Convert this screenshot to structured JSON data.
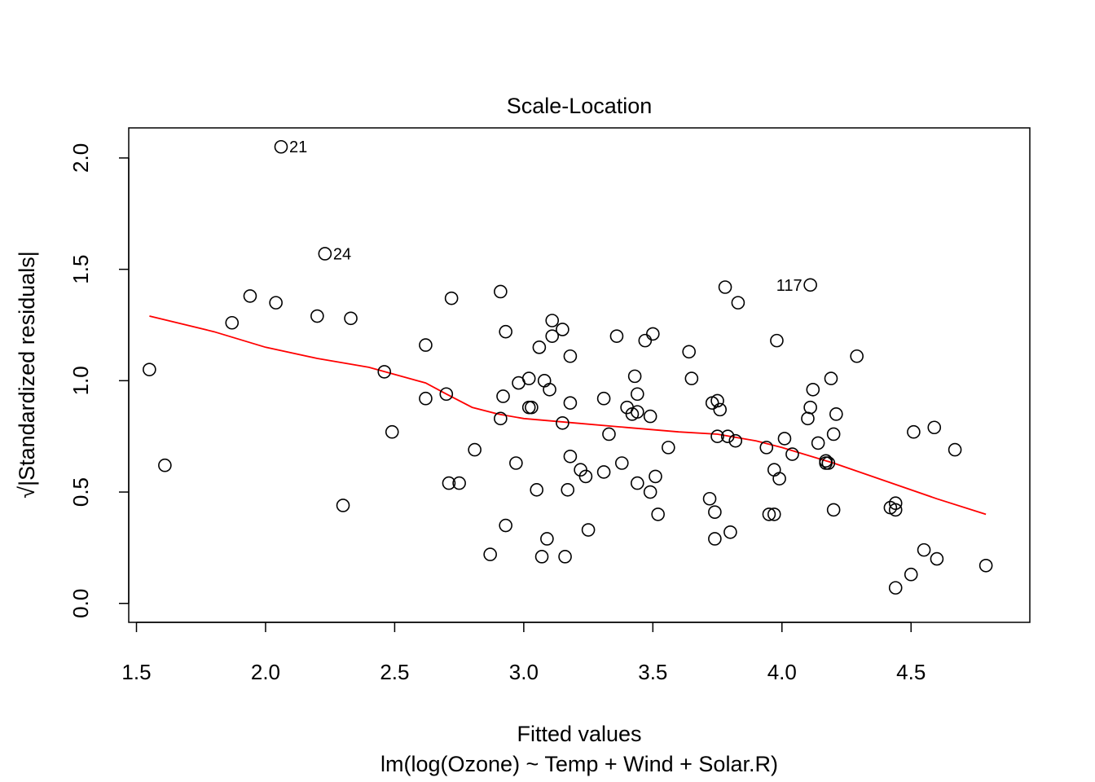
{
  "chart_data": {
    "type": "scatter",
    "title": "Scale-Location",
    "xlabel": "Fitted values",
    "xlabel_sub": "lm(log(Ozone) ~ Temp + Wind + Solar.R)",
    "ylabel": "√|Standardized residuals|",
    "xlim": [
      1.47,
      4.96
    ],
    "ylim": [
      -0.085,
      2.135
    ],
    "x_ticks": [
      1.5,
      2.0,
      2.5,
      3.0,
      3.5,
      4.0,
      4.5
    ],
    "x_tick_labels": [
      "1.5",
      "2.0",
      "2.5",
      "3.0",
      "3.5",
      "4.0",
      "4.5"
    ],
    "y_ticks": [
      0.0,
      0.5,
      1.0,
      1.5,
      2.0
    ],
    "y_tick_labels": [
      "0.0",
      "0.5",
      "1.0",
      "1.5",
      "2.0"
    ],
    "grid": false,
    "point_color": "#000000",
    "smoother_color": "#ff0000",
    "points": [
      [
        2.06,
        2.05
      ],
      [
        2.23,
        1.57
      ],
      [
        4.11,
        1.43
      ],
      [
        1.55,
        1.05
      ],
      [
        1.61,
        0.62
      ],
      [
        1.87,
        1.26
      ],
      [
        1.94,
        1.38
      ],
      [
        2.04,
        1.35
      ],
      [
        2.2,
        1.29
      ],
      [
        2.3,
        0.44
      ],
      [
        2.33,
        1.28
      ],
      [
        2.46,
        1.04
      ],
      [
        2.49,
        0.77
      ],
      [
        2.62,
        1.16
      ],
      [
        2.62,
        0.92
      ],
      [
        2.7,
        0.94
      ],
      [
        2.71,
        0.54
      ],
      [
        2.72,
        1.37
      ],
      [
        2.75,
        0.54
      ],
      [
        2.81,
        0.69
      ],
      [
        2.87,
        0.22
      ],
      [
        2.91,
        1.4
      ],
      [
        2.91,
        0.83
      ],
      [
        2.92,
        0.93
      ],
      [
        2.93,
        1.22
      ],
      [
        2.93,
        0.35
      ],
      [
        2.97,
        0.63
      ],
      [
        2.98,
        0.99
      ],
      [
        3.02,
        1.01
      ],
      [
        3.02,
        0.88
      ],
      [
        3.03,
        0.88
      ],
      [
        3.05,
        0.51
      ],
      [
        3.06,
        1.15
      ],
      [
        3.07,
        0.21
      ],
      [
        3.08,
        1.0
      ],
      [
        3.09,
        0.29
      ],
      [
        3.1,
        0.96
      ],
      [
        3.11,
        1.27
      ],
      [
        3.11,
        1.2
      ],
      [
        3.15,
        1.23
      ],
      [
        3.15,
        0.81
      ],
      [
        3.16,
        0.21
      ],
      [
        3.17,
        0.51
      ],
      [
        3.18,
        0.9
      ],
      [
        3.18,
        1.11
      ],
      [
        3.18,
        0.66
      ],
      [
        3.22,
        0.6
      ],
      [
        3.24,
        0.57
      ],
      [
        3.25,
        0.33
      ],
      [
        3.31,
        0.92
      ],
      [
        3.31,
        0.59
      ],
      [
        3.33,
        0.76
      ],
      [
        3.36,
        1.2
      ],
      [
        3.38,
        0.63
      ],
      [
        3.4,
        0.88
      ],
      [
        3.42,
        0.85
      ],
      [
        3.43,
        1.02
      ],
      [
        3.44,
        0.54
      ],
      [
        3.44,
        0.86
      ],
      [
        3.44,
        0.94
      ],
      [
        3.47,
        1.18
      ],
      [
        3.49,
        0.84
      ],
      [
        3.49,
        0.5
      ],
      [
        3.5,
        1.21
      ],
      [
        3.51,
        0.57
      ],
      [
        3.52,
        0.4
      ],
      [
        3.56,
        0.7
      ],
      [
        3.64,
        1.13
      ],
      [
        3.65,
        1.01
      ],
      [
        3.72,
        0.47
      ],
      [
        3.73,
        0.9
      ],
      [
        3.74,
        0.29
      ],
      [
        3.74,
        0.41
      ],
      [
        3.75,
        0.91
      ],
      [
        3.75,
        0.75
      ],
      [
        3.76,
        0.87
      ],
      [
        3.78,
        1.42
      ],
      [
        3.79,
        0.75
      ],
      [
        3.8,
        0.32
      ],
      [
        3.82,
        0.73
      ],
      [
        3.83,
        1.35
      ],
      [
        3.94,
        0.7
      ],
      [
        3.95,
        0.4
      ],
      [
        3.97,
        0.4
      ],
      [
        3.97,
        0.6
      ],
      [
        3.98,
        1.18
      ],
      [
        3.99,
        0.56
      ],
      [
        4.01,
        0.74
      ],
      [
        4.04,
        0.67
      ],
      [
        4.1,
        0.83
      ],
      [
        4.11,
        0.88
      ],
      [
        4.12,
        0.96
      ],
      [
        4.14,
        0.72
      ],
      [
        4.17,
        0.63
      ],
      [
        4.17,
        0.64
      ],
      [
        4.18,
        0.63
      ],
      [
        4.19,
        1.01
      ],
      [
        4.2,
        0.42
      ],
      [
        4.2,
        0.76
      ],
      [
        4.21,
        0.85
      ],
      [
        4.29,
        1.11
      ],
      [
        4.42,
        0.43
      ],
      [
        4.44,
        0.42
      ],
      [
        4.44,
        0.45
      ],
      [
        4.44,
        0.07
      ],
      [
        4.5,
        0.13
      ],
      [
        4.51,
        0.77
      ],
      [
        4.55,
        0.24
      ],
      [
        4.59,
        0.79
      ],
      [
        4.6,
        0.2
      ],
      [
        4.67,
        0.69
      ],
      [
        4.79,
        0.17
      ]
    ],
    "labeled_points": [
      {
        "label": "21",
        "x": 2.06,
        "y": 2.05,
        "side": "right"
      },
      {
        "label": "24",
        "x": 2.23,
        "y": 1.57,
        "side": "right"
      },
      {
        "label": "117",
        "x": 4.11,
        "y": 1.43,
        "side": "left"
      }
    ],
    "smoother": [
      [
        1.55,
        1.29
      ],
      [
        1.8,
        1.22
      ],
      [
        2.0,
        1.15
      ],
      [
        2.2,
        1.1
      ],
      [
        2.4,
        1.06
      ],
      [
        2.62,
        0.99
      ],
      [
        2.7,
        0.94
      ],
      [
        2.8,
        0.88
      ],
      [
        2.9,
        0.85
      ],
      [
        3.0,
        0.83
      ],
      [
        3.2,
        0.81
      ],
      [
        3.4,
        0.79
      ],
      [
        3.6,
        0.77
      ],
      [
        3.75,
        0.76
      ],
      [
        3.8,
        0.75
      ],
      [
        3.9,
        0.73
      ],
      [
        4.0,
        0.7
      ],
      [
        4.2,
        0.63
      ],
      [
        4.4,
        0.55
      ],
      [
        4.6,
        0.47
      ],
      [
        4.79,
        0.4
      ]
    ]
  }
}
